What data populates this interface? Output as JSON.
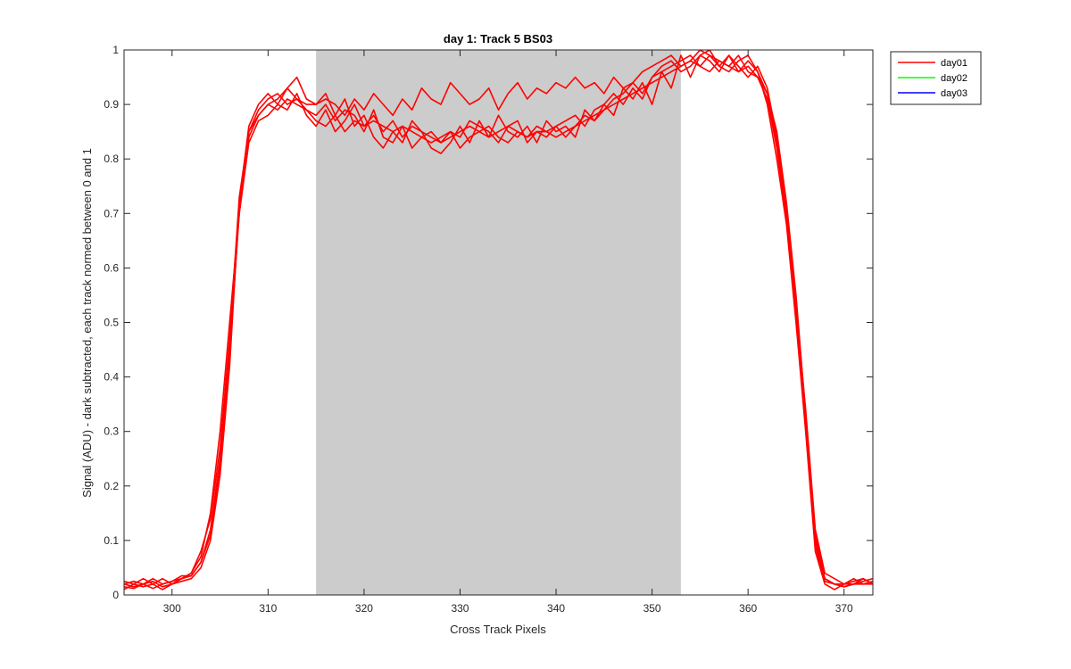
{
  "chart_data": {
    "type": "line",
    "title": "day 1: Track 5  BS03",
    "xlabel": "Cross Track Pixels",
    "ylabel": "Signal (ADU) - dark subtracted, each track normed between 0 and 1",
    "xlim": [
      295,
      373
    ],
    "ylim": [
      0,
      1
    ],
    "xticks": [
      300,
      310,
      320,
      330,
      340,
      350,
      360,
      370
    ],
    "yticks": [
      0,
      0.1,
      0.2,
      0.3,
      0.4,
      0.5,
      0.6,
      0.7,
      0.8,
      0.9,
      1
    ],
    "ytick_labels": [
      "0",
      "0.1",
      "0.2",
      "0.3",
      "0.4",
      "0.5",
      "0.6",
      "0.7",
      "0.8",
      "0.9",
      "1"
    ],
    "grid": false,
    "legend_position": "outside-top-right",
    "shaded_region": {
      "x": [
        315,
        353
      ],
      "color": "#cccccc"
    },
    "x": [
      295,
      296,
      297,
      298,
      299,
      300,
      301,
      302,
      303,
      304,
      305,
      306,
      307,
      308,
      309,
      310,
      311,
      312,
      313,
      314,
      315,
      316,
      317,
      318,
      319,
      320,
      321,
      322,
      323,
      324,
      325,
      326,
      327,
      328,
      329,
      330,
      331,
      332,
      333,
      334,
      335,
      336,
      337,
      338,
      339,
      340,
      341,
      342,
      343,
      344,
      345,
      346,
      347,
      348,
      349,
      350,
      351,
      352,
      353,
      354,
      355,
      356,
      357,
      358,
      359,
      360,
      361,
      362,
      363,
      364,
      365,
      366,
      367,
      368,
      369,
      370,
      371,
      372,
      373
    ],
    "legend": [
      {
        "name": "day01",
        "color": "#ff0000"
      },
      {
        "name": "day02",
        "color": "#00ff00"
      },
      {
        "name": "day03",
        "color": "#0000ff"
      }
    ],
    "series": [
      {
        "name": "day01",
        "color": "#ff0000",
        "values": [
          0.02,
          0.015,
          0.02,
          0.012,
          0.02,
          0.025,
          0.03,
          0.035,
          0.06,
          0.12,
          0.25,
          0.45,
          0.7,
          0.84,
          0.88,
          0.9,
          0.89,
          0.91,
          0.9,
          0.89,
          0.87,
          0.86,
          0.88,
          0.85,
          0.87,
          0.86,
          0.87,
          0.86,
          0.85,
          0.86,
          0.85,
          0.84,
          0.85,
          0.83,
          0.84,
          0.85,
          0.86,
          0.85,
          0.84,
          0.85,
          0.86,
          0.85,
          0.84,
          0.85,
          0.85,
          0.84,
          0.85,
          0.86,
          0.87,
          0.88,
          0.89,
          0.9,
          0.91,
          0.92,
          0.93,
          0.94,
          0.95,
          0.96,
          0.97,
          0.98,
          0.97,
          0.96,
          0.98,
          0.97,
          0.96,
          0.97,
          0.95,
          0.92,
          0.85,
          0.72,
          0.55,
          0.33,
          0.1,
          0.03,
          0.02,
          0.015,
          0.02,
          0.02,
          0.02
        ]
      },
      {
        "name": "day01",
        "color": "#ff0000",
        "values": [
          0.015,
          0.012,
          0.02,
          0.025,
          0.015,
          0.02,
          0.025,
          0.03,
          0.05,
          0.1,
          0.22,
          0.42,
          0.72,
          0.86,
          0.9,
          0.92,
          0.9,
          0.93,
          0.91,
          0.9,
          0.9,
          0.92,
          0.88,
          0.91,
          0.86,
          0.88,
          0.84,
          0.82,
          0.85,
          0.83,
          0.87,
          0.85,
          0.82,
          0.81,
          0.83,
          0.86,
          0.83,
          0.87,
          0.84,
          0.88,
          0.85,
          0.84,
          0.86,
          0.83,
          0.87,
          0.85,
          0.86,
          0.84,
          0.89,
          0.87,
          0.9,
          0.88,
          0.93,
          0.91,
          0.94,
          0.9,
          0.96,
          0.93,
          0.99,
          0.95,
          0.99,
          1.0,
          0.97,
          0.99,
          0.96,
          0.98,
          0.96,
          0.9,
          0.8,
          0.68,
          0.5,
          0.3,
          0.08,
          0.02,
          0.01,
          0.02,
          0.03,
          0.02,
          0.025
        ]
      },
      {
        "name": "day01",
        "color": "#ff0000",
        "values": [
          0.025,
          0.02,
          0.015,
          0.02,
          0.03,
          0.02,
          0.03,
          0.04,
          0.07,
          0.15,
          0.3,
          0.5,
          0.7,
          0.83,
          0.87,
          0.88,
          0.9,
          0.89,
          0.92,
          0.88,
          0.86,
          0.89,
          0.85,
          0.87,
          0.9,
          0.86,
          0.88,
          0.85,
          0.87,
          0.84,
          0.86,
          0.85,
          0.84,
          0.83,
          0.85,
          0.84,
          0.87,
          0.86,
          0.85,
          0.83,
          0.86,
          0.87,
          0.83,
          0.85,
          0.84,
          0.86,
          0.87,
          0.88,
          0.86,
          0.89,
          0.9,
          0.92,
          0.9,
          0.93,
          0.91,
          0.95,
          0.97,
          0.98,
          0.96,
          0.97,
          0.99,
          0.98,
          0.96,
          0.99,
          0.97,
          0.95,
          0.97,
          0.93,
          0.84,
          0.7,
          0.52,
          0.31,
          0.09,
          0.025,
          0.02,
          0.02,
          0.025,
          0.03,
          0.02
        ]
      },
      {
        "name": "day01",
        "color": "#ff0000",
        "values": [
          0.01,
          0.02,
          0.03,
          0.02,
          0.01,
          0.02,
          0.03,
          0.04,
          0.08,
          0.14,
          0.27,
          0.47,
          0.73,
          0.85,
          0.89,
          0.91,
          0.92,
          0.9,
          0.91,
          0.89,
          0.88,
          0.9,
          0.87,
          0.89,
          0.88,
          0.85,
          0.89,
          0.84,
          0.83,
          0.86,
          0.82,
          0.84,
          0.83,
          0.84,
          0.85,
          0.82,
          0.84,
          0.85,
          0.86,
          0.84,
          0.83,
          0.85,
          0.84,
          0.86,
          0.85,
          0.86,
          0.84,
          0.86,
          0.88,
          0.87,
          0.89,
          0.91,
          0.92,
          0.94,
          0.92,
          0.95,
          0.96,
          0.97,
          0.98,
          0.99,
          0.97,
          0.99,
          0.98,
          0.97,
          0.99,
          0.96,
          0.95,
          0.91,
          0.82,
          0.69,
          0.51,
          0.32,
          0.11,
          0.03,
          0.02,
          0.015,
          0.02,
          0.03,
          0.02
        ]
      },
      {
        "name": "day01",
        "color": "#ff0000",
        "values": [
          0.02,
          0.025,
          0.02,
          0.03,
          0.02,
          0.025,
          0.035,
          0.035,
          0.06,
          0.11,
          0.24,
          0.44,
          0.71,
          0.85,
          0.88,
          0.9,
          0.91,
          0.93,
          0.95,
          0.91,
          0.9,
          0.91,
          0.9,
          0.88,
          0.91,
          0.89,
          0.92,
          0.9,
          0.88,
          0.91,
          0.89,
          0.93,
          0.91,
          0.9,
          0.94,
          0.92,
          0.9,
          0.91,
          0.93,
          0.89,
          0.92,
          0.94,
          0.91,
          0.93,
          0.92,
          0.94,
          0.93,
          0.95,
          0.93,
          0.94,
          0.92,
          0.95,
          0.93,
          0.94,
          0.96,
          0.97,
          0.98,
          0.99,
          0.97,
          0.98,
          1.0,
          0.99,
          0.97,
          0.96,
          0.98,
          0.99,
          0.96,
          0.92,
          0.83,
          0.71,
          0.53,
          0.34,
          0.12,
          0.04,
          0.03,
          0.02,
          0.02,
          0.025,
          0.03
        ]
      }
    ]
  }
}
